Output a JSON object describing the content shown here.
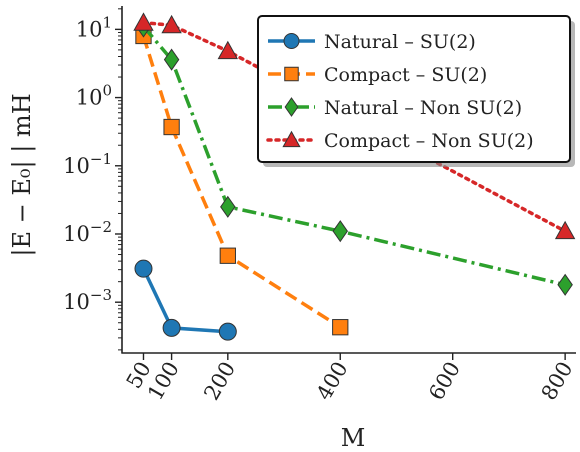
{
  "chart_data": {
    "type": "line",
    "title": "",
    "xlabel": "M",
    "ylabel": "|E − E₀| | mH",
    "x_scale": "linear",
    "y_scale": "log",
    "xlim": [
      10,
      830
    ],
    "ylim": [
      0.00018,
      22
    ],
    "xticks": [
      50,
      100,
      200,
      400,
      600,
      800
    ],
    "yticks": [
      {
        "value": 10,
        "base": "10",
        "exp": "1"
      },
      {
        "value": 1,
        "base": "10",
        "exp": "0"
      },
      {
        "value": 0.1,
        "base": "10",
        "exp": "−1"
      },
      {
        "value": 0.01,
        "base": "10",
        "exp": "−2"
      },
      {
        "value": 0.001,
        "base": "10",
        "exp": "−3"
      }
    ],
    "grid": false,
    "legend_position": "top-right",
    "series": [
      {
        "name": "Natural – SU(2)",
        "color": "#1f77b4",
        "line": "solid",
        "marker": "circle",
        "x": [
          50,
          100,
          200
        ],
        "y": [
          0.0031,
          0.00042,
          0.00037
        ]
      },
      {
        "name": "Compact – SU(2)",
        "color": "#ff7f0e",
        "line": "dashed",
        "marker": "square",
        "x": [
          50,
          100,
          200,
          400
        ],
        "y": [
          8.0,
          0.37,
          0.0048,
          0.00043
        ]
      },
      {
        "name": "Natural – Non SU(2)",
        "color": "#2ca02c",
        "line": "dashdot",
        "marker": "diamond",
        "x": [
          50,
          100,
          200,
          400,
          800
        ],
        "y": [
          11.0,
          3.6,
          0.025,
          0.011,
          0.0018
        ]
      },
      {
        "name": "Compact – Non SU(2)",
        "color": "#d62728",
        "line": "dotted",
        "marker": "triangle",
        "x": [
          50,
          100,
          200,
          800
        ],
        "y": [
          12.5,
          11.5,
          4.8,
          0.011
        ]
      }
    ]
  }
}
